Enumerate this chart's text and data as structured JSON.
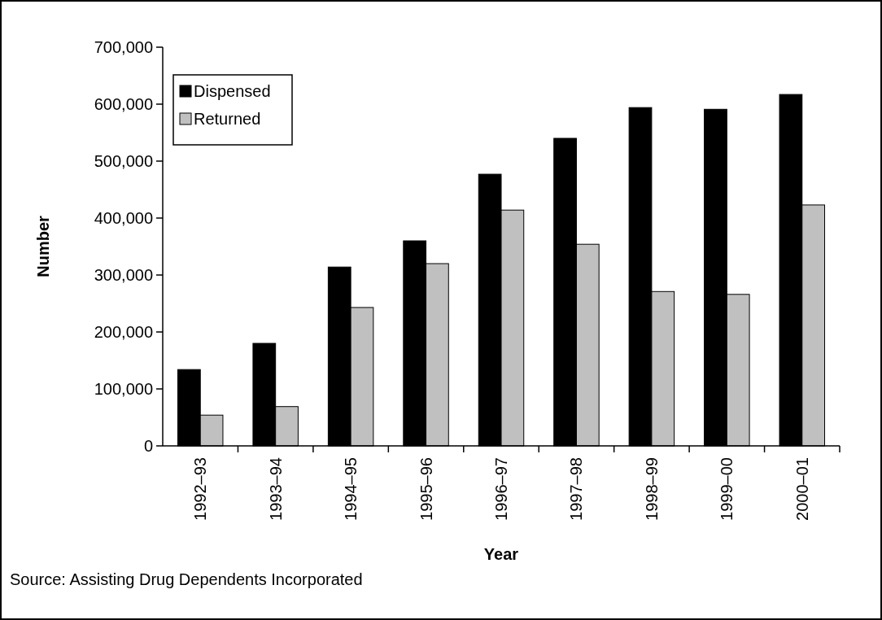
{
  "chart_data": {
    "type": "bar",
    "xlabel": "Year",
    "ylabel": "Number",
    "categories": [
      "1992–93",
      "1993–94",
      "1994–95",
      "1995–96",
      "1996–97",
      "1997–98",
      "1998–99",
      "1999–00",
      "2000–01"
    ],
    "series": [
      {
        "name": "Dispensed",
        "color": "#000000",
        "values": [
          134000,
          180000,
          314000,
          360000,
          477000,
          540000,
          594000,
          591000,
          617000
        ]
      },
      {
        "name": "Returned",
        "color": "#c0c0c0",
        "values": [
          54000,
          69000,
          243000,
          320000,
          414000,
          354000,
          271000,
          266000,
          423000
        ]
      }
    ],
    "ylim": [
      0,
      700000
    ],
    "yticks": [
      {
        "value": 0,
        "label": "0"
      },
      {
        "value": 100000,
        "label": "100,000"
      },
      {
        "value": 200000,
        "label": "200,000"
      },
      {
        "value": 300000,
        "label": "300,000"
      },
      {
        "value": 400000,
        "label": "400,000"
      },
      {
        "value": 500000,
        "label": "500,000"
      },
      {
        "value": 600000,
        "label": "600,000"
      },
      {
        "value": 700000,
        "label": "700,000"
      }
    ],
    "grid": false,
    "legend": "top left",
    "annotations": [
      "Source: Assisting Drug Dependents Incorporated"
    ]
  }
}
